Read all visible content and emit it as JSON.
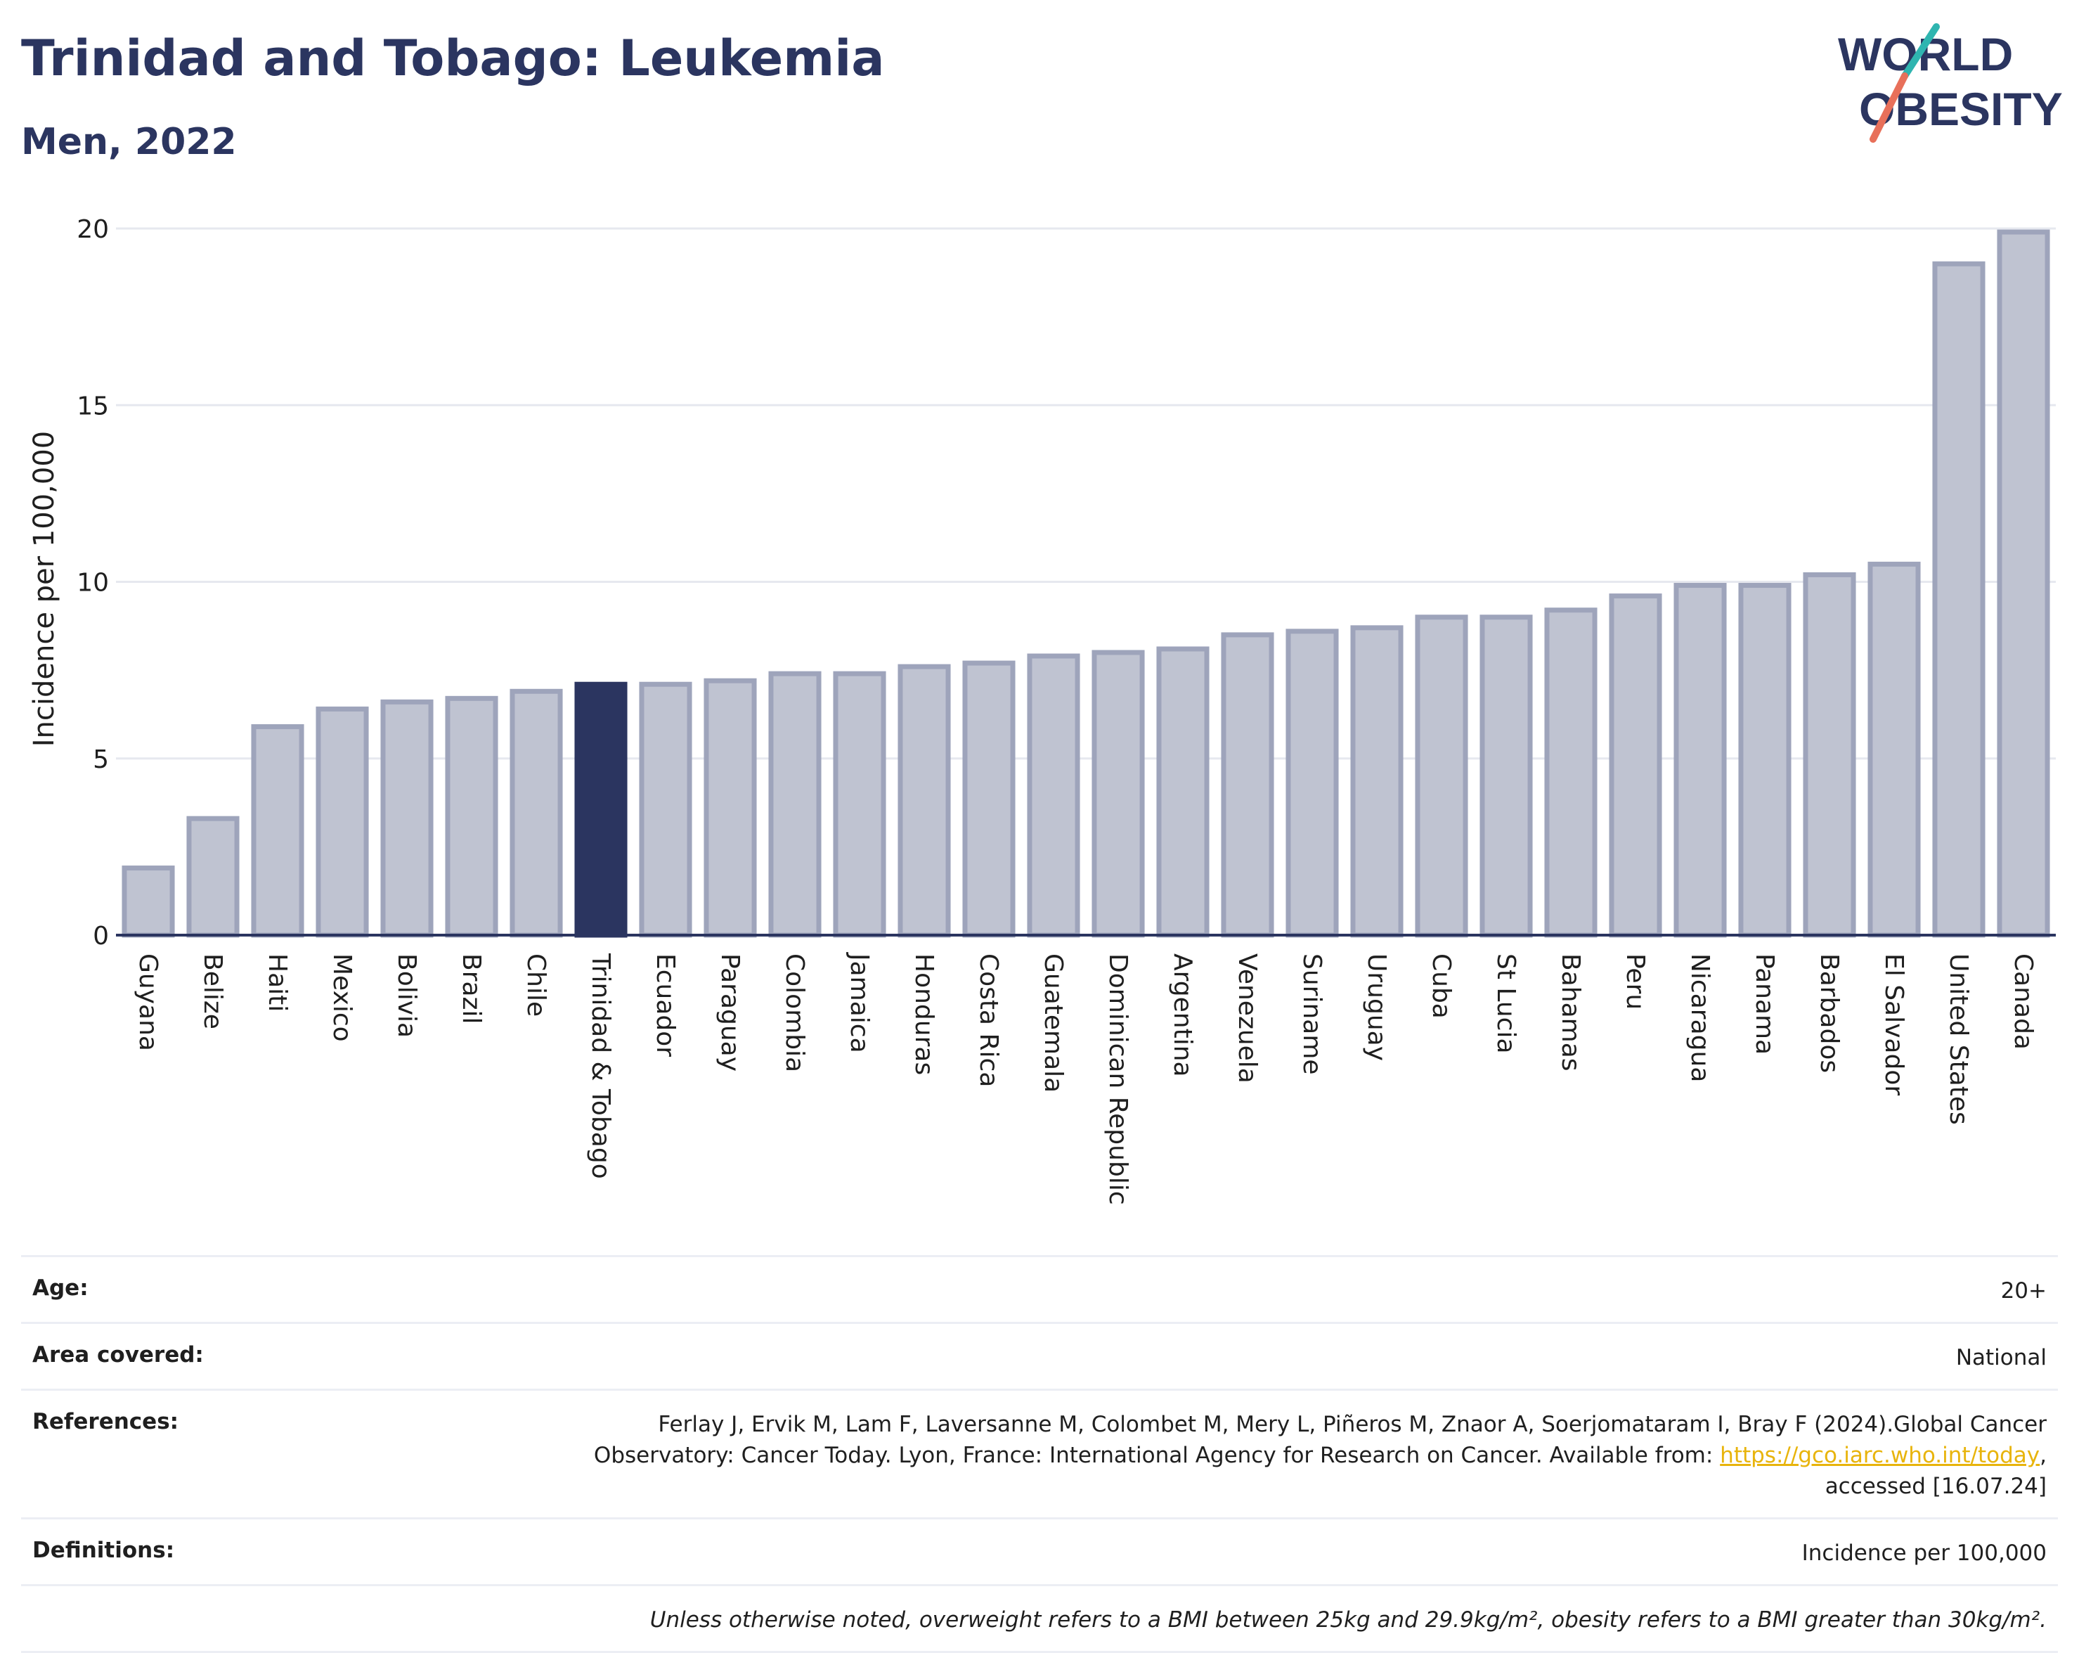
{
  "title": "Trinidad and Tobago: Leukemia",
  "subtitle": "Men, 2022",
  "logo": {
    "line1": "WORLD",
    "line2": "OBESITY"
  },
  "colors": {
    "bar": "#bfc3d1",
    "bar_border": "#9ea4bb",
    "highlight": "#2b3560",
    "grid": "#e6e8ef",
    "axis": "#2b3560",
    "logo_teal": "#2fb5b0",
    "logo_coral": "#e8705a",
    "link": "#e8b40c"
  },
  "chart_data": {
    "type": "bar",
    "ylabel": "Incidence per 100,000",
    "ylim": [
      0,
      20
    ],
    "yticks": [
      0,
      5,
      10,
      15,
      20
    ],
    "grid": true,
    "highlight": "Trinidad & Tobago",
    "categories": [
      "Guyana",
      "Belize",
      "Haiti",
      "Mexico",
      "Bolivia",
      "Brazil",
      "Chile",
      "Trinidad & Tobago",
      "Ecuador",
      "Paraguay",
      "Colombia",
      "Jamaica",
      "Honduras",
      "Costa Rica",
      "Guatemala",
      "Dominican Republic",
      "Argentina",
      "Venezuela",
      "Suriname",
      "Uruguay",
      "Cuba",
      "St Lucia",
      "Bahamas",
      "Peru",
      "Nicaragua",
      "Panama",
      "Barbados",
      "El Salvador",
      "United States",
      "Canada"
    ],
    "values": [
      1.9,
      3.3,
      5.9,
      6.4,
      6.6,
      6.7,
      6.9,
      7.1,
      7.1,
      7.2,
      7.4,
      7.4,
      7.6,
      7.7,
      7.9,
      8.0,
      8.1,
      8.5,
      8.6,
      8.7,
      9.0,
      9.0,
      9.2,
      9.6,
      9.9,
      9.9,
      10.2,
      10.5,
      19.0,
      19.9
    ]
  },
  "info": {
    "age_label": "Age:",
    "age_value": "20+",
    "area_label": "Area covered:",
    "area_value": "National",
    "references_label": "References:",
    "references_line1": "Ferlay J, Ervik M, Lam F, Laversanne M, Colombet M, Mery L, Piñeros M, Znaor A, Soerjomataram I, Bray F (2024).Global Cancer",
    "references_line2_pre": "Observatory: Cancer Today. Lyon, France: International Agency for Research on Cancer. Available from: ",
    "references_link": "https://gco.iarc.who.int/today",
    "references_line2_post": ",",
    "references_line3": "accessed [16.07.24]",
    "definitions_label": "Definitions:",
    "definitions_value": "Incidence per 100,000",
    "note": "Unless otherwise noted, overweight refers to a BMI between 25kg and 29.9kg/m², obesity refers to a BMI greater than 30kg/m²."
  }
}
